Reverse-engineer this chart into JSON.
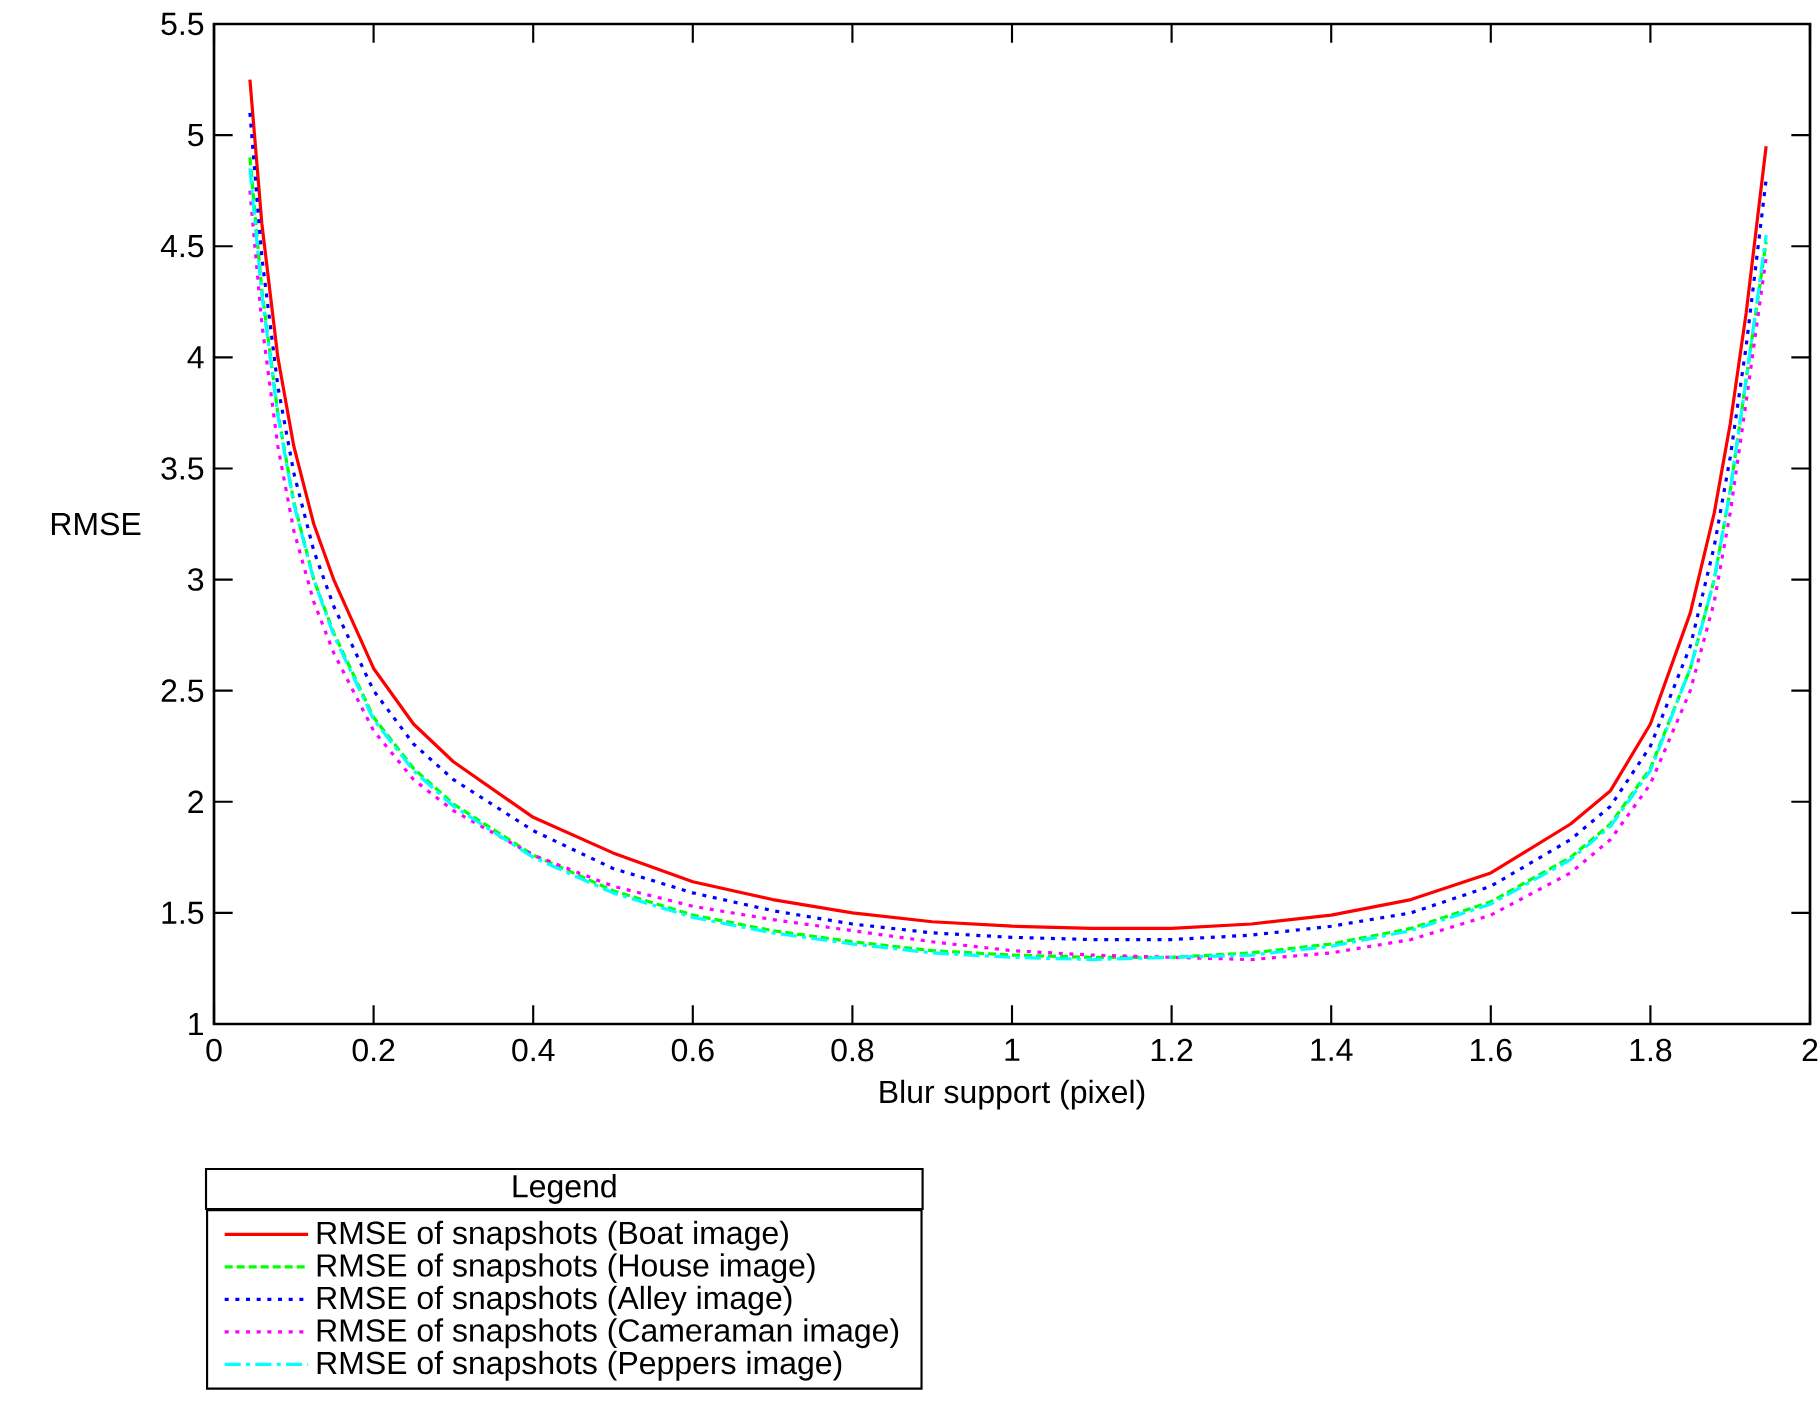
{
  "chart_data": {
    "type": "line",
    "xlabel": "Blur support (pixel)",
    "ylabel": "RMSE",
    "legend_title": "Legend",
    "legend": "bottom",
    "grid": false,
    "xlim": [
      0,
      2
    ],
    "ylim": [
      1,
      5.5
    ],
    "xticks": [
      0,
      0.2,
      0.4,
      0.6,
      0.8,
      1,
      1.2,
      1.4,
      1.6,
      1.8,
      2
    ],
    "yticks": [
      1,
      1.5,
      2,
      2.5,
      3,
      3.5,
      4,
      4.5,
      5,
      5.5
    ],
    "x": [
      0.045,
      0.06,
      0.08,
      0.1,
      0.125,
      0.15,
      0.2,
      0.25,
      0.3,
      0.4,
      0.5,
      0.6,
      0.7,
      0.8,
      0.9,
      1.0,
      1.1,
      1.2,
      1.3,
      1.4,
      1.5,
      1.6,
      1.7,
      1.75,
      1.8,
      1.85,
      1.88,
      1.9,
      1.92,
      1.945
    ],
    "series": [
      {
        "name": "RMSE of snapshots (Boat image)",
        "color": "#ff0000",
        "line_style": "solid",
        "values": [
          5.25,
          4.6,
          4.0,
          3.6,
          3.25,
          3.0,
          2.6,
          2.35,
          2.18,
          1.93,
          1.77,
          1.64,
          1.56,
          1.5,
          1.46,
          1.44,
          1.43,
          1.43,
          1.45,
          1.49,
          1.56,
          1.68,
          1.9,
          2.05,
          2.35,
          2.85,
          3.3,
          3.7,
          4.2,
          4.95
        ]
      },
      {
        "name": "RMSE of snapshots (House image)",
        "color": "#00ff00",
        "line_style": "dashed",
        "values": [
          4.9,
          4.3,
          3.75,
          3.35,
          3.0,
          2.76,
          2.38,
          2.15,
          1.99,
          1.76,
          1.6,
          1.49,
          1.42,
          1.37,
          1.33,
          1.31,
          1.3,
          1.3,
          1.32,
          1.36,
          1.43,
          1.55,
          1.75,
          1.9,
          2.15,
          2.6,
          3.0,
          3.4,
          3.9,
          4.52
        ]
      },
      {
        "name": "RMSE of snapshots (Alley image)",
        "color": "#0000ff",
        "line_style": "dotted",
        "values": [
          5.1,
          4.45,
          3.87,
          3.48,
          3.13,
          2.88,
          2.5,
          2.26,
          2.1,
          1.87,
          1.7,
          1.59,
          1.51,
          1.45,
          1.41,
          1.39,
          1.38,
          1.38,
          1.4,
          1.44,
          1.5,
          1.62,
          1.83,
          1.98,
          2.25,
          2.7,
          3.15,
          3.55,
          4.05,
          4.8
        ]
      },
      {
        "name": "RMSE of snapshots (Cameraman image)",
        "color": "#ff00ff",
        "line_style": "dotted",
        "values": [
          4.75,
          4.15,
          3.6,
          3.22,
          2.9,
          2.67,
          2.32,
          2.1,
          1.96,
          1.76,
          1.62,
          1.53,
          1.47,
          1.42,
          1.37,
          1.33,
          1.31,
          1.3,
          1.29,
          1.32,
          1.38,
          1.49,
          1.68,
          1.83,
          2.08,
          2.5,
          2.9,
          3.3,
          3.8,
          4.45
        ]
      },
      {
        "name": "RMSE of snapshots (Peppers image)",
        "color": "#00ffff",
        "line_style": "dashdot",
        "values": [
          4.85,
          4.28,
          3.74,
          3.34,
          3.0,
          2.75,
          2.37,
          2.14,
          1.98,
          1.75,
          1.59,
          1.48,
          1.41,
          1.36,
          1.32,
          1.3,
          1.29,
          1.3,
          1.31,
          1.35,
          1.42,
          1.54,
          1.74,
          1.89,
          2.14,
          2.6,
          3.0,
          3.4,
          3.9,
          4.55
        ]
      }
    ]
  }
}
